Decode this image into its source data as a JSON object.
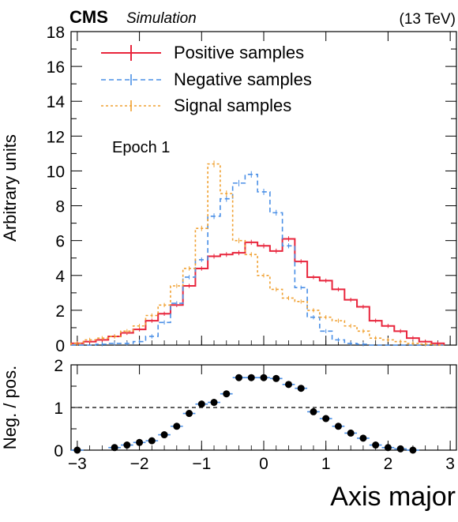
{
  "header": {
    "experiment": "CMS",
    "status": "Simulation",
    "energy": "(13 TeV)"
  },
  "chart_data": [
    {
      "type": "line",
      "step": true,
      "annotation": "Epoch 1",
      "ylabel": "Arbitrary units",
      "ylim": [
        0,
        18
      ],
      "yticks": [
        0,
        2,
        4,
        6,
        8,
        10,
        12,
        14,
        16,
        18
      ],
      "xlim": [
        -3.1,
        3.1
      ],
      "xticks": [
        -3,
        -2,
        -1,
        0,
        1,
        2,
        3
      ],
      "bin_width": 0.2,
      "x": [
        -3.0,
        -2.8,
        -2.6,
        -2.4,
        -2.2,
        -2.0,
        -1.8,
        -1.6,
        -1.4,
        -1.2,
        -1.0,
        -0.8,
        -0.6,
        -0.4,
        -0.2,
        0.0,
        0.2,
        0.4,
        0.6,
        0.8,
        1.0,
        1.2,
        1.4,
        1.6,
        1.8,
        2.0,
        2.2,
        2.4,
        2.6,
        2.8
      ],
      "legend_position": "top-left",
      "series": [
        {
          "name": "Positive samples",
          "color": "#e8253c",
          "dash": "solid",
          "values": [
            0.1,
            0.2,
            0.3,
            0.5,
            0.7,
            0.9,
            1.4,
            1.8,
            2.3,
            3.4,
            4.4,
            5.1,
            5.2,
            5.3,
            5.9,
            5.7,
            5.4,
            6.1,
            4.8,
            3.9,
            3.7,
            3.2,
            2.6,
            2.2,
            1.4,
            1.1,
            0.8,
            0.4,
            0.2,
            0.1
          ]
        },
        {
          "name": "Negative samples",
          "color": "#4a8fe6",
          "dash": "6,4",
          "values": [
            0.0,
            0.0,
            0.05,
            0.1,
            0.1,
            0.2,
            0.5,
            1.3,
            2.4,
            3.9,
            4.9,
            7.4,
            8.4,
            9.3,
            9.8,
            8.8,
            7.6,
            5.7,
            3.3,
            1.6,
            0.8,
            0.3,
            0.1,
            0.05,
            0.0,
            0.0,
            0.0,
            0.0,
            0.0,
            0.0
          ]
        },
        {
          "name": "Signal samples",
          "color": "#f0a030",
          "dash": "3,3",
          "values": [
            0.1,
            0.3,
            0.4,
            0.5,
            0.8,
            1.1,
            1.7,
            2.3,
            3.4,
            4.4,
            6.7,
            10.4,
            8.7,
            6.0,
            5.2,
            4.0,
            3.2,
            2.7,
            2.5,
            2.0,
            1.6,
            1.4,
            1.1,
            0.8,
            0.4,
            0.3,
            0.2,
            0.1,
            0.05,
            0.0
          ]
        }
      ]
    },
    {
      "type": "scatter",
      "ylabel": "Neg. / pos.",
      "xlabel": "Axis major",
      "ylim": [
        0,
        2
      ],
      "yticks": [
        0,
        1,
        2
      ],
      "xlim": [
        -3.1,
        3.1
      ],
      "xticks": [
        -3,
        -2,
        -1,
        0,
        1,
        2,
        3
      ],
      "reference_line": 1,
      "x": [
        -3.0,
        -2.4,
        -2.2,
        -2.0,
        -1.8,
        -1.6,
        -1.4,
        -1.2,
        -1.0,
        -0.8,
        -0.6,
        -0.4,
        -0.2,
        0.0,
        0.2,
        0.4,
        0.6,
        0.8,
        1.0,
        1.2,
        1.4,
        1.6,
        1.8,
        2.0,
        2.2,
        2.4
      ],
      "values": [
        0.0,
        0.06,
        0.12,
        0.18,
        0.22,
        0.36,
        0.56,
        0.86,
        1.08,
        1.12,
        1.32,
        1.7,
        1.7,
        1.7,
        1.68,
        1.54,
        1.45,
        0.9,
        0.74,
        0.56,
        0.4,
        0.28,
        0.12,
        0.06,
        0.03,
        0.0
      ],
      "marker_color": "#000000",
      "errorbar_color": "#4a8fe6"
    }
  ]
}
